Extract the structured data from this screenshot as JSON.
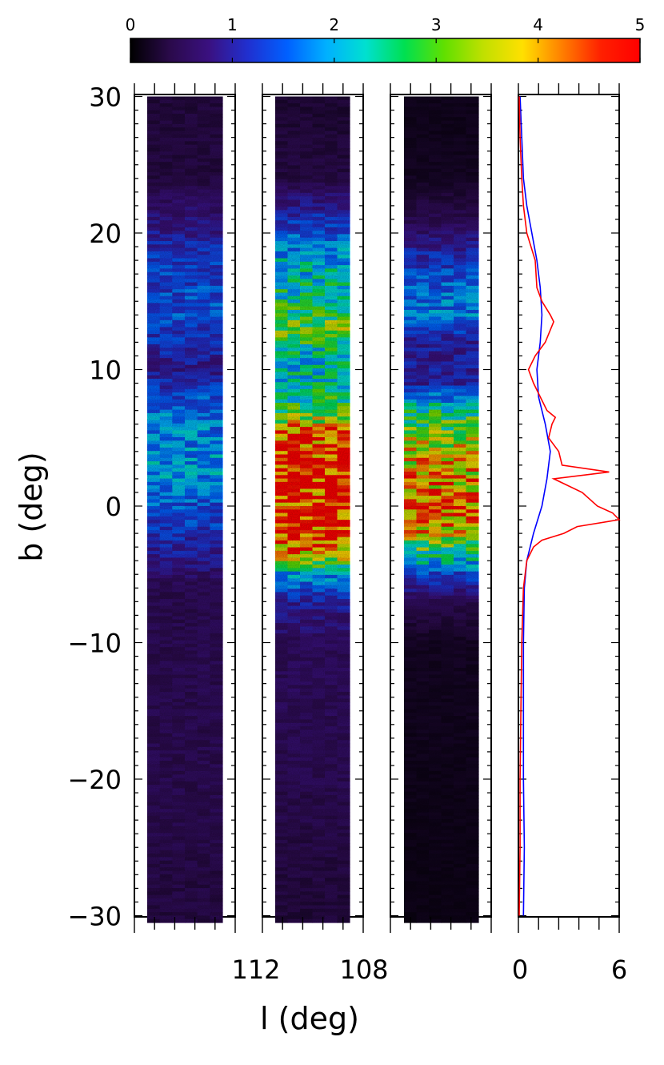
{
  "colorbar": {
    "ticks": [
      "0",
      "1",
      "2",
      "3",
      "4",
      "5"
    ],
    "min": 0,
    "max": 5,
    "colormap": [
      "#000000",
      "#2a0a4a",
      "#3a1080",
      "#2030d0",
      "#0060ff",
      "#00b0ff",
      "#00e0d0",
      "#00e050",
      "#60e000",
      "#c0e000",
      "#ffe000",
      "#ff8000",
      "#ff2000",
      "#ff0000"
    ]
  },
  "axes": {
    "ylabel": "b (deg)",
    "xlabel": "l (deg)",
    "yticks": [
      "30",
      "20",
      "10",
      "0",
      "−10",
      "−20",
      "−30"
    ],
    "panel2_xticks": [
      "112",
      "108"
    ],
    "panel4_xticks": [
      "0",
      "6"
    ]
  },
  "chart_data": {
    "type": "heatmap",
    "panels": [
      {
        "panel": 1,
        "kind": "heatmap",
        "brightness_by_b": [
          [
            30,
            0.35
          ],
          [
            24,
            0.4
          ],
          [
            21,
            0.8
          ],
          [
            18,
            1.3
          ],
          [
            14,
            1.5
          ],
          [
            12,
            1.2
          ],
          [
            10,
            0.9
          ],
          [
            7,
            1.7
          ],
          [
            4,
            1.9
          ],
          [
            2,
            1.9
          ],
          [
            0,
            1.5
          ],
          [
            -2,
            1.2
          ],
          [
            -4,
            0.9
          ],
          [
            -6,
            0.5
          ],
          [
            -10,
            0.5
          ],
          [
            -20,
            0.5
          ],
          [
            -30,
            0.4
          ]
        ]
      },
      {
        "panel": 2,
        "kind": "heatmap",
        "x_range": [
          112,
          108
        ],
        "brightness_by_b": [
          [
            30,
            0.3
          ],
          [
            24,
            0.4
          ],
          [
            21,
            1.2
          ],
          [
            18,
            2.1
          ],
          [
            15,
            2.5
          ],
          [
            13,
            3.1
          ],
          [
            11,
            2.2
          ],
          [
            9,
            2.3
          ],
          [
            7,
            2.8
          ],
          [
            5,
            4.6
          ],
          [
            3,
            4.9
          ],
          [
            1,
            4.9
          ],
          [
            -1,
            4.9
          ],
          [
            -3,
            4.4
          ],
          [
            -5,
            2.0
          ],
          [
            -7,
            1.0
          ],
          [
            -10,
            0.6
          ],
          [
            -20,
            0.5
          ],
          [
            -30,
            0.35
          ]
        ]
      },
      {
        "panel": 3,
        "kind": "heatmap",
        "brightness_by_b": [
          [
            30,
            0.15
          ],
          [
            24,
            0.2
          ],
          [
            21,
            0.5
          ],
          [
            18,
            1.2
          ],
          [
            16,
            1.6
          ],
          [
            14,
            1.8
          ],
          [
            12,
            1.0
          ],
          [
            9,
            1.0
          ],
          [
            7,
            2.5
          ],
          [
            5,
            3.3
          ],
          [
            3,
            3.8
          ],
          [
            1,
            4.2
          ],
          [
            -1,
            4.3
          ],
          [
            -3,
            3.0
          ],
          [
            -5,
            1.4
          ],
          [
            -7,
            0.5
          ],
          [
            -10,
            0.2
          ],
          [
            -20,
            0.15
          ],
          [
            -30,
            0.12
          ]
        ]
      },
      {
        "panel": 4,
        "kind": "line",
        "x_range": [
          0,
          6
        ],
        "y_range": [
          -30,
          30
        ],
        "series": [
          {
            "color": "#0000ff",
            "b": [
              30,
              27,
              24,
              22,
              20,
              18,
              16,
              14,
              12,
              10,
              8,
              6,
              4,
              2,
              0,
              -2,
              -3,
              -4,
              -6,
              -10,
              -15,
              -20,
              -25,
              -30
            ],
            "x": [
              0.1,
              0.2,
              0.3,
              0.5,
              0.8,
              1.1,
              1.3,
              1.4,
              1.3,
              1.1,
              1.2,
              1.6,
              1.9,
              1.7,
              1.4,
              0.9,
              0.7,
              0.5,
              0.35,
              0.3,
              0.3,
              0.3,
              0.35,
              0.3
            ]
          },
          {
            "color": "#ff0000",
            "b": [
              30,
              27,
              24,
              22,
              20,
              18,
              16,
              15,
              14,
              13.5,
              12,
              11,
              10,
              9,
              8,
              7,
              6.5,
              6,
              5,
              4,
              3,
              2.5,
              2,
              1,
              0,
              -0.5,
              -1,
              -1.5,
              -2,
              -2.5,
              -3,
              -4,
              -6,
              -10,
              -15,
              -20,
              -25,
              -30
            ],
            "x": [
              0.05,
              0.1,
              0.2,
              0.3,
              0.5,
              1.0,
              1.1,
              1.4,
              1.9,
              2.1,
              1.6,
              1.0,
              0.6,
              0.9,
              1.3,
              1.7,
              2.2,
              2.0,
              1.8,
              2.4,
              2.6,
              5.4,
              2.1,
              3.8,
              4.7,
              5.6,
              6.0,
              3.5,
              2.7,
              1.4,
              0.9,
              0.5,
              0.3,
              0.2,
              0.15,
              0.1,
              0.1,
              0.05
            ]
          }
        ]
      }
    ]
  }
}
